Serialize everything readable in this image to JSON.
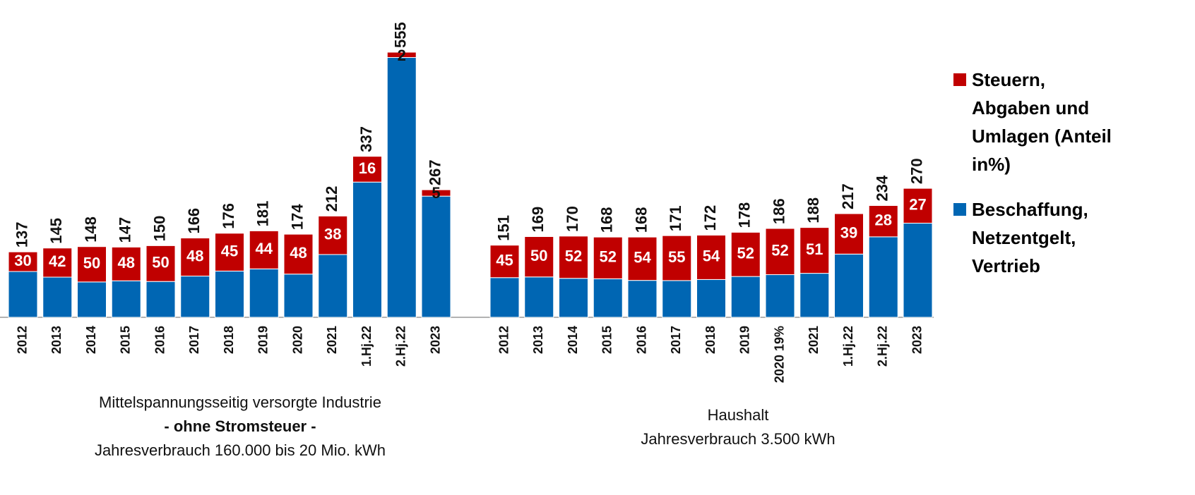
{
  "chart_data": {
    "type": "stacked-share-bar",
    "groups": [
      {
        "label_lines": [
          "Mittelspannungsseitig versorgte Industrie",
          "- ohne Stromsteuer -",
          "Jahresverbrauch 160.000 bis 20 Mio. kWh"
        ],
        "categories": [
          "2012",
          "2013",
          "2014",
          "2015",
          "2016",
          "2017",
          "2018",
          "2019",
          "2020",
          "2021",
          "1.Hj.22",
          "2.Hj.22",
          "2023"
        ],
        "totals": [
          137,
          145,
          148,
          147,
          150,
          166,
          176,
          181,
          174,
          212,
          337,
          555,
          267
        ],
        "shares": [
          30,
          42,
          50,
          48,
          50,
          48,
          45,
          44,
          48,
          38,
          16,
          2,
          5
        ]
      },
      {
        "label_lines": [
          "Haushalt",
          "Jahresverbrauch 3.500 kWh"
        ],
        "categories": [
          "2012",
          "2013",
          "2014",
          "2015",
          "2016",
          "2017",
          "2018",
          "2019",
          "2020 19%",
          "2021",
          "1.Hj.22",
          "2.Hj.22",
          "2023"
        ],
        "totals": [
          151,
          169,
          170,
          168,
          168,
          171,
          172,
          178,
          186,
          188,
          217,
          234,
          270
        ],
        "shares": [
          45,
          50,
          52,
          52,
          54,
          55,
          54,
          52,
          52,
          51,
          39,
          28,
          27
        ]
      }
    ],
    "series": [
      {
        "name": "Steuern, Abgaben und Umlagen (Anteil in%)",
        "color": "#c00000"
      },
      {
        "name": "Beschaffung, Netzentgelt, Vertrieb",
        "color": "#0066b3"
      }
    ]
  }
}
